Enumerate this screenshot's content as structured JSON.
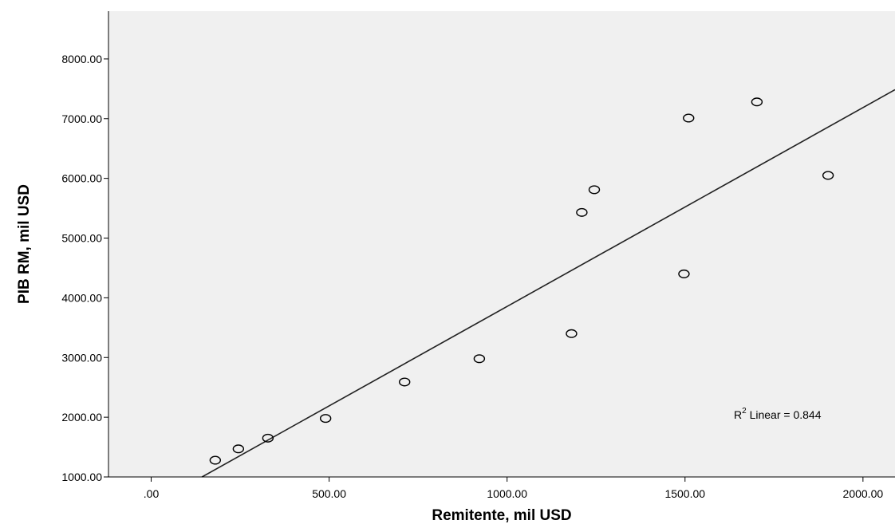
{
  "chart_data": {
    "type": "scatter",
    "xlabel": "Remitente, mil USD",
    "ylabel": "PIB RM, mil USD",
    "xlim": [
      -120,
      2090
    ],
    "ylim": [
      1000,
      8800
    ],
    "x_ticks": [
      0,
      500,
      1000,
      1500,
      2000
    ],
    "x_tick_labels": [
      ".00",
      "500.00",
      "1000.00",
      "1500.00",
      "2000.00"
    ],
    "y_ticks": [
      1000,
      2000,
      3000,
      4000,
      5000,
      6000,
      7000,
      8000
    ],
    "y_tick_labels": [
      "1000.00",
      "2000.00",
      "3000.00",
      "4000.00",
      "5000.00",
      "6000.00",
      "7000.00",
      "8000.00"
    ],
    "grid": false,
    "legend": "none",
    "plot_background": "#f0f0f0",
    "marker_color": "#000000",
    "series": [
      {
        "x": [
          180,
          245,
          328,
          490,
          712,
          922,
          1181,
          1210,
          1245,
          1497,
          1510,
          1702,
          1902
        ],
        "y": [
          1280,
          1470,
          1650,
          1980,
          2590,
          2980,
          3400,
          5430,
          5810,
          4400,
          7010,
          7280,
          6050
        ]
      }
    ],
    "fit_line": {
      "type": "linear",
      "slope": 3.33,
      "intercept": 525,
      "r2_prefix": "R",
      "r2_sup": "2",
      "r2_text": " Linear = 0.844"
    }
  }
}
